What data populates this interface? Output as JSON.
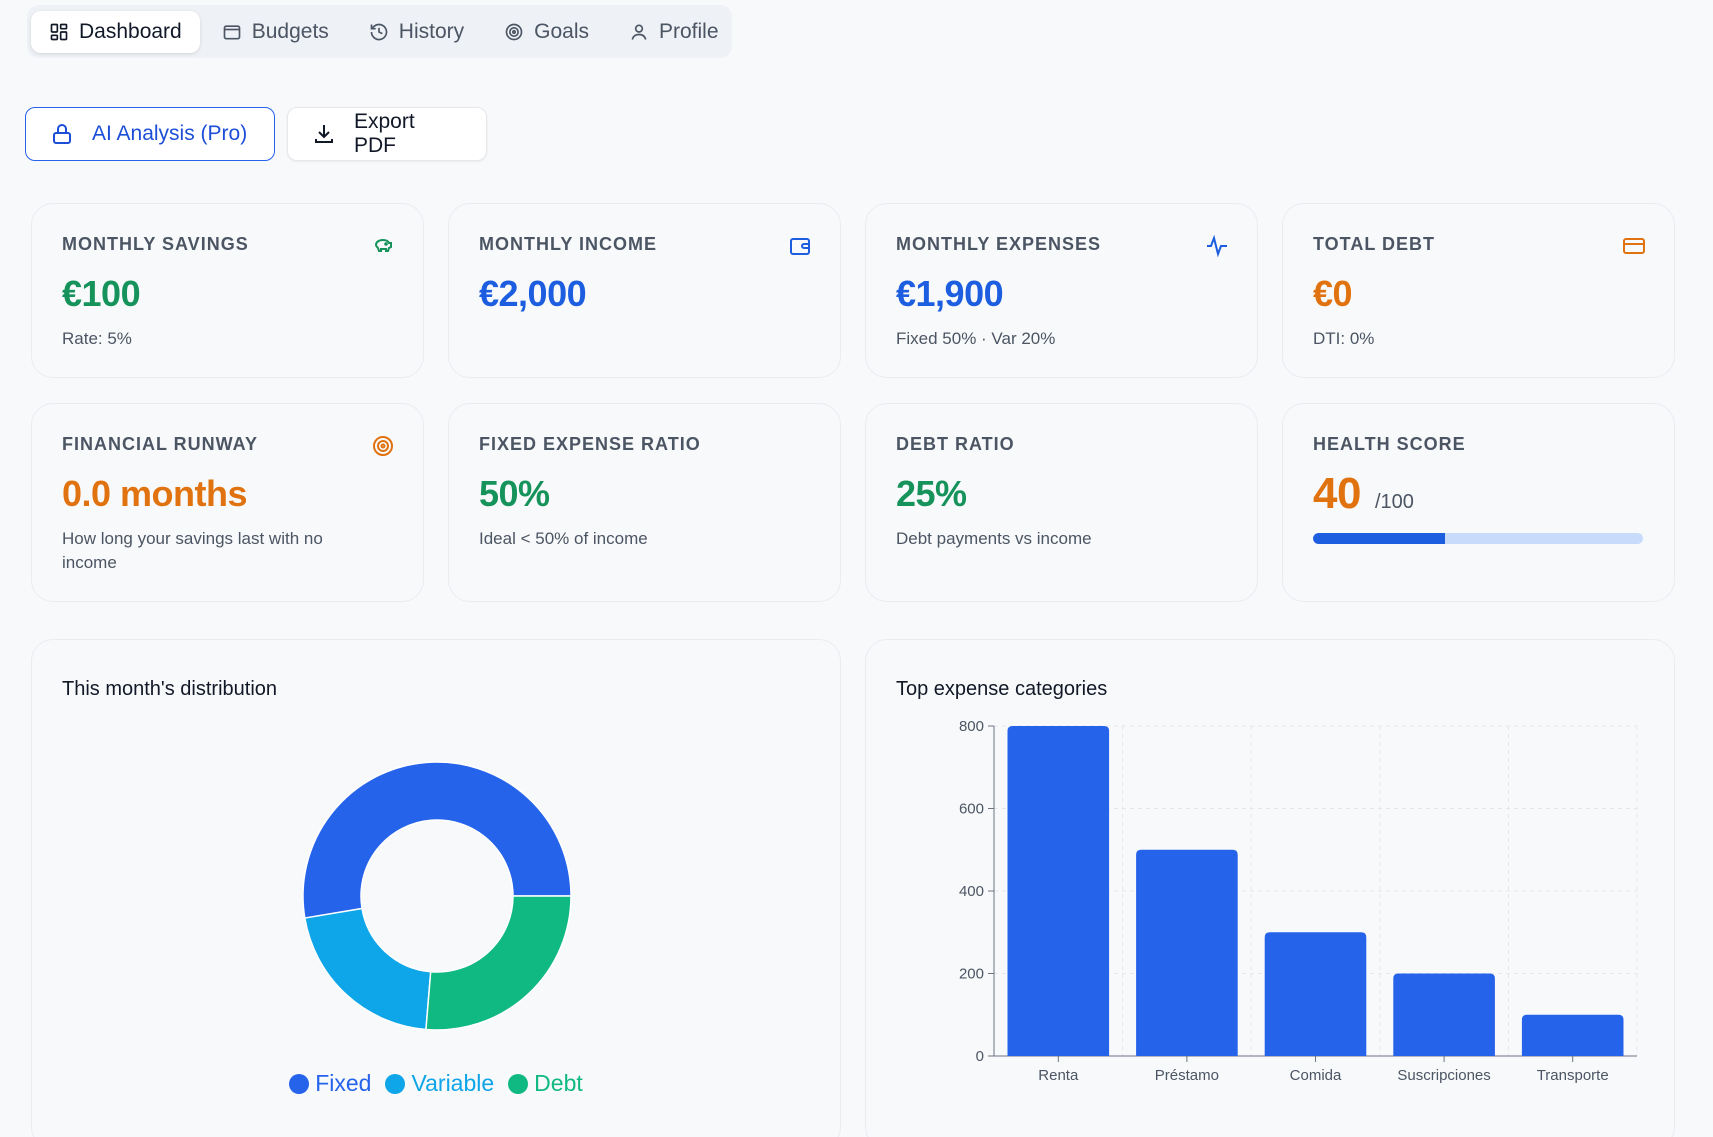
{
  "tabs": [
    {
      "label": "Dashboard",
      "icon": "dashboard-icon",
      "active": true
    },
    {
      "label": "Budgets",
      "icon": "wallet-icon"
    },
    {
      "label": "History",
      "icon": "history-icon"
    },
    {
      "label": "Goals",
      "icon": "target-icon"
    },
    {
      "label": "Profile",
      "icon": "user-icon"
    }
  ],
  "actions": {
    "ai_label": "AI Analysis (Pro)",
    "export_label": "Export PDF"
  },
  "colors": {
    "green": "#15935b",
    "blue": "#1d5ee0",
    "orange": "#e0730f",
    "bar": "#2563eb",
    "fixed": "#2563eb",
    "variable": "#0ea5e9",
    "debt": "#10b981"
  },
  "metrics": {
    "savings": {
      "label": "MONTHLY SAVINGS",
      "value": "€100",
      "sub": "Rate: 5%",
      "icon": "piggy-bank-icon"
    },
    "income": {
      "label": "MONTHLY INCOME",
      "value": "€2,000",
      "icon": "wallet-icon"
    },
    "expenses": {
      "label": "MONTHLY EXPENSES",
      "value": "€1,900",
      "sub": "Fixed 50% · Var 20%",
      "icon": "activity-icon"
    },
    "debt": {
      "label": "TOTAL DEBT",
      "value": "€0",
      "sub": "DTI: 0%",
      "icon": "credit-card-icon"
    },
    "runway": {
      "label": "FINANCIAL RUNWAY",
      "value": "0.0 months",
      "sub": "How long your savings last with no income",
      "icon": "target-icon"
    },
    "fixed_ratio": {
      "label": "FIXED EXPENSE RATIO",
      "value": "50%",
      "sub": "Ideal < 50% of income"
    },
    "debt_ratio": {
      "label": "DEBT RATIO",
      "value": "25%",
      "sub": "Debt payments vs income"
    },
    "health": {
      "label": "HEALTH SCORE",
      "value": "40",
      "max": "/100",
      "progress": 0.4
    }
  },
  "distribution": {
    "title": "This month's distribution"
  },
  "categories": {
    "title": "Top expense categories"
  },
  "chart_data": [
    {
      "type": "pie",
      "title": "This month's distribution",
      "donut": true,
      "categories": [
        "Fixed",
        "Variable",
        "Debt"
      ],
      "values": [
        50,
        20,
        25
      ],
      "colors": [
        "#2563eb",
        "#0ea5e9",
        "#10b981"
      ],
      "legend": "bottom"
    },
    {
      "type": "bar",
      "title": "Top expense categories",
      "categories": [
        "Renta",
        "Préstamo",
        "Comida",
        "Suscripciones",
        "Transporte"
      ],
      "values": [
        800,
        500,
        300,
        200,
        100
      ],
      "ylim": [
        0,
        800
      ],
      "yticks": [
        0,
        200,
        400,
        600,
        800
      ],
      "grid": true,
      "color": "#2563eb"
    }
  ]
}
